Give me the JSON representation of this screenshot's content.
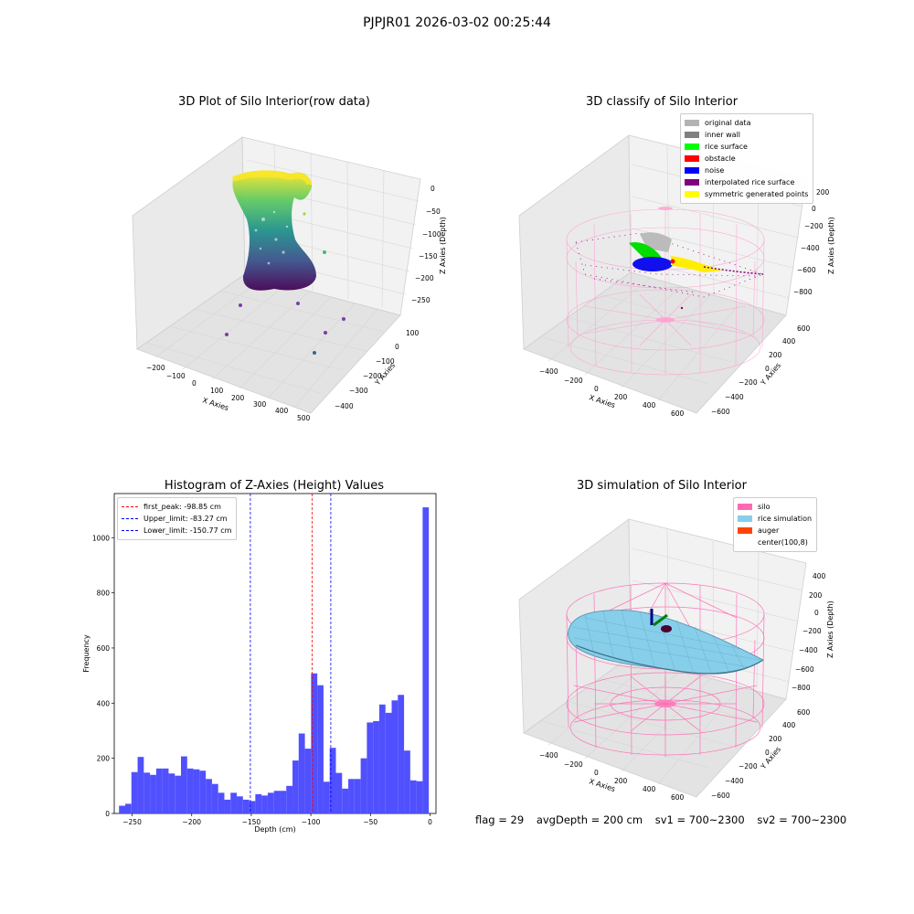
{
  "figure_title": "PJPJR01 2026-03-02 00:25:44",
  "panels": {
    "raw": {
      "title": "3D Plot of Silo Interior(row data)",
      "x_label": "X Axies",
      "y_label": "Y Axies",
      "z_label": "Z Axies (Depth)",
      "x_ticks": [
        "−200",
        "−100",
        "0",
        "100",
        "200",
        "300",
        "400",
        "500"
      ],
      "y_ticks": [
        "100",
        "0",
        "−100",
        "−200",
        "−300",
        "−400"
      ],
      "z_ticks": [
        "0",
        "−50",
        "−100",
        "−150",
        "−200",
        "−250"
      ]
    },
    "classify": {
      "title": "3D classify of Silo Interior",
      "x_label": "X Axies",
      "y_label": "Y Axies",
      "z_label": "Z Axies (Depth)",
      "x_ticks": [
        "−400",
        "−200",
        "0",
        "200",
        "400",
        "600"
      ],
      "y_ticks": [
        "600",
        "400",
        "200",
        "0",
        "−200",
        "−400",
        "−600"
      ],
      "z_ticks": [
        "200",
        "0",
        "−200",
        "−400",
        "−600",
        "−800"
      ],
      "legend": [
        {
          "label": "original data",
          "color": "#b3b3b3"
        },
        {
          "label": "inner wall",
          "color": "#808080"
        },
        {
          "label": "rice surface",
          "color": "#00ff00"
        },
        {
          "label": "obstacle",
          "color": "#ff0000"
        },
        {
          "label": "noise",
          "color": "#0000ff"
        },
        {
          "label": "interpolated rice surface",
          "color": "#800080"
        },
        {
          "label": "symmetric generated points",
          "color": "#ffff00"
        }
      ]
    },
    "simulation": {
      "title": "3D simulation of Silo Interior",
      "x_label": "X Axies",
      "y_label": "Y Axies",
      "z_label": "Z Axies (Depth)",
      "x_ticks": [
        "−400",
        "−200",
        "0",
        "200",
        "400",
        "600"
      ],
      "y_ticks": [
        "600",
        "400",
        "200",
        "0",
        "−200",
        "−400",
        "−600"
      ],
      "z_ticks": [
        "400",
        "200",
        "0",
        "−200",
        "−400",
        "−600",
        "−800"
      ],
      "legend": [
        {
          "label": "silo",
          "color": "#ff69b4"
        },
        {
          "label": "rice simulation",
          "color": "#87ceeb"
        },
        {
          "label": "auger",
          "color": "#ff4500"
        },
        {
          "label": "center(100,8)",
          "color": "#ffffff"
        }
      ]
    },
    "footer": {
      "flag": "flag = 29",
      "avg": "avgDepth = 200 cm",
      "sv1": "sv1 = 700~2300",
      "sv2": "sv2 = 700~2300"
    }
  },
  "chart_data": {
    "type": "bar",
    "title": "Histogram of Z-Axies (Height) Values",
    "xlabel": "Depth (cm)",
    "ylabel": "Frequency",
    "xlim": [
      -265,
      5
    ],
    "ylim": [
      0,
      1160
    ],
    "x_ticks": [
      -250,
      -200,
      -150,
      -100,
      -50,
      0
    ],
    "x_tick_labels": [
      "−250",
      "−200",
      "−150",
      "−100",
      "−50",
      "0"
    ],
    "y_ticks": [
      0,
      200,
      400,
      600,
      800,
      1000
    ],
    "bar_color": "#4d4dff",
    "bin_width": 5.2,
    "bin_start": -261,
    "values": [
      28,
      35,
      150,
      205,
      148,
      140,
      163,
      163,
      145,
      137,
      207,
      163,
      160,
      155,
      125,
      107,
      75,
      50,
      75,
      62,
      50,
      45,
      70,
      65,
      75,
      82,
      82,
      100,
      192,
      290,
      235,
      508,
      465,
      115,
      238,
      147,
      90,
      125,
      125,
      200,
      330,
      335,
      395,
      365,
      410,
      430,
      228,
      120,
      117,
      1110
    ],
    "lines": [
      {
        "label": "first_peak: -98.85 cm",
        "x": -98.85,
        "color": "#ff0000"
      },
      {
        "label": "Upper_limit: -83.27 cm",
        "x": -83.27,
        "color": "#0000ff"
      },
      {
        "label": "Lower_limit: -150.77 cm",
        "x": -150.77,
        "color": "#0000ff"
      }
    ],
    "legend_position": "upper-left"
  }
}
